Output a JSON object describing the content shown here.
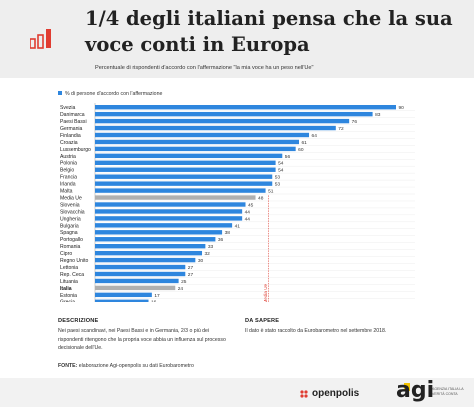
{
  "header": {
    "title": "1/4 degli italiani pensa che la sua voce conti in Europa",
    "subtitle": "Percentuale di rispondenti d'accordo con l'affermazione \"la mia voce ha un peso nell'Ue\""
  },
  "chart_data": {
    "type": "bar",
    "orientation": "horizontal",
    "legend": "% di persone d'accordo con l'affermazione",
    "legend_position": "top-left",
    "categories": [
      "Svezia",
      "Danimarca",
      "Paesi Bassi",
      "Germania",
      "Finlandia",
      "Croazia",
      "Lussemburgo",
      "Austria",
      "Polonia",
      "Belgio",
      "Francia",
      "Irlanda",
      "Malta",
      "Media Ue",
      "Slovenia",
      "Slovacchia",
      "Ungheria",
      "Bulgaria",
      "Spagna",
      "Portogallo",
      "Romania",
      "Cipro",
      "Regno Unito",
      "Lettonia",
      "Rep. Ceca",
      "Lituania",
      "Italia",
      "Estonia",
      "Grecia"
    ],
    "values": [
      90,
      83,
      76,
      72,
      64,
      61,
      60,
      56,
      54,
      54,
      53,
      53,
      51,
      48,
      45,
      44,
      44,
      41,
      38,
      36,
      33,
      32,
      30,
      27,
      27,
      25,
      24,
      17,
      16
    ],
    "xlim": [
      0,
      90
    ],
    "reference_line": {
      "label": "Media Ue",
      "value": 48
    },
    "highlight": [
      "Italia",
      "Media Ue"
    ],
    "colors": {
      "bar": "#2e86de",
      "highlight_bar": "#b0b0b0",
      "reference_line": "#e0473c"
    }
  },
  "footer": {
    "descrizione_title": "DESCRIZIONE",
    "descrizione_text": "Nei paesi scandinavi, nei Paesi Bassi e in Germania, 2/3 o più dei rispondenti ritengono che la propria voce abbia un influenza sul processo decisionale dell'Ue.",
    "sapere_title": "DA SAPERE",
    "sapere_text": "Il dato è stato raccolto da Eurobarometro nel settembre 2018.",
    "fonte_label": "FONTE:",
    "fonte_text": "elaborazione Agi-openpolis su dati Eurobarometro"
  },
  "logos": {
    "openpolis": "openpolis",
    "agi": "agi",
    "agi_sub": "AGENZIA ITALIA LA VERITÀ CONTA"
  }
}
